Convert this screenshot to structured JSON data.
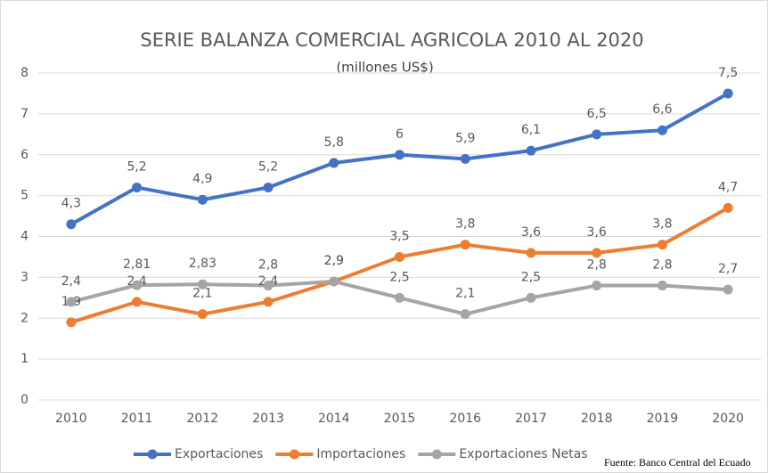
{
  "chart_data": {
    "type": "line",
    "title": "SERIE BALANZA COMERCIAL AGRICOLA 2010 AL 2020",
    "subtitle": "(millones US$)",
    "source": "Fuente: Banco Central del Ecuado",
    "categories": [
      "2010",
      "2011",
      "2012",
      "2013",
      "2014",
      "2015",
      "2016",
      "2017",
      "2018",
      "2019",
      "2020"
    ],
    "series": [
      {
        "name": "Exportaciones",
        "color": "#4472c4",
        "values": [
          4.3,
          5.2,
          4.9,
          5.2,
          5.8,
          6,
          5.9,
          6.1,
          6.5,
          6.6,
          7.5
        ],
        "value_labels": [
          "4,3",
          "5,2",
          "4,9",
          "5,2",
          "5,8",
          "6",
          "5,9",
          "6,1",
          "6,5",
          "6,6",
          "7,5"
        ]
      },
      {
        "name": "Importaciones",
        "color": "#ed7d31",
        "values": [
          1.9,
          2.4,
          2.1,
          2.4,
          2.9,
          3.5,
          3.8,
          3.6,
          3.6,
          3.8,
          4.7
        ],
        "value_labels": [
          "1,9",
          "2,4",
          "2,1",
          "2,4",
          "2,9",
          "3,5",
          "3,8",
          "3,6",
          "3,6",
          "3,8",
          "4,7"
        ]
      },
      {
        "name": "Exportaciones Netas",
        "color": "#a5a5a5",
        "values": [
          2.4,
          2.81,
          2.83,
          2.8,
          2.9,
          2.5,
          2.1,
          2.5,
          2.8,
          2.8,
          2.7
        ],
        "value_labels": [
          "2,4",
          "2,81",
          "2,83",
          "2,8",
          "2,9",
          "2,5",
          "2,1",
          "2,5",
          "2,8",
          "2,8",
          "2,7"
        ]
      }
    ],
    "ylim": [
      0,
      8
    ],
    "yticks": [
      0,
      1,
      2,
      3,
      4,
      5,
      6,
      7,
      8
    ],
    "grid": true,
    "legend": "bottom"
  }
}
